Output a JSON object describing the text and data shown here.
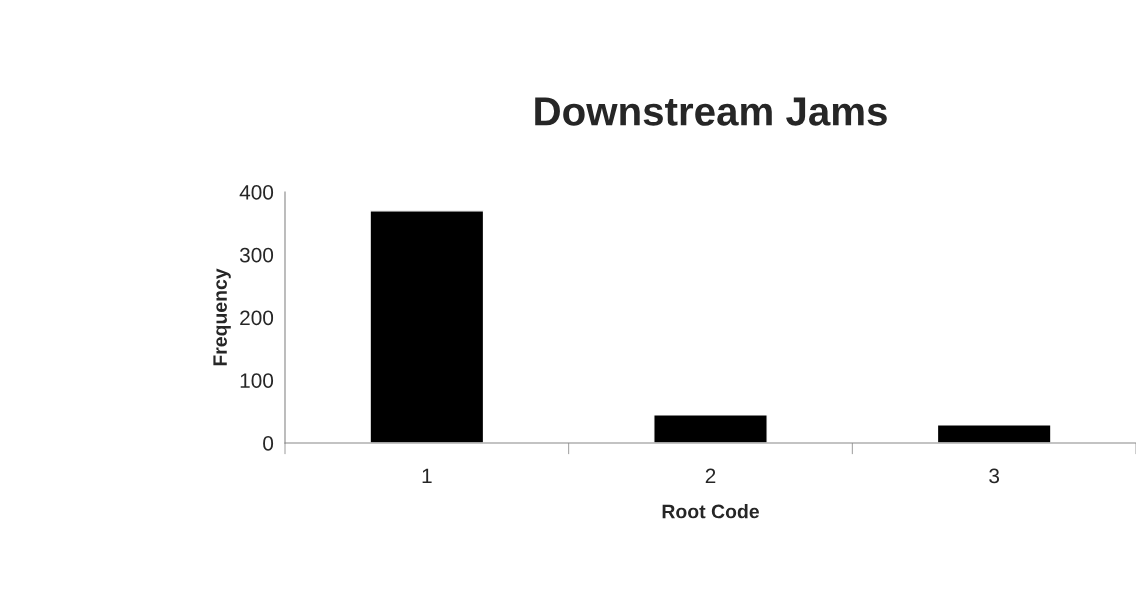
{
  "chart_data": {
    "type": "bar",
    "title": "Downstream Jams",
    "xlabel": "Root Code",
    "ylabel": "Frequency",
    "categories": [
      "1",
      "2",
      "3"
    ],
    "series": [
      {
        "color": "#000000",
        "values": [
          370,
          45,
          29
        ]
      }
    ],
    "ylim": [
      0,
      400
    ],
    "yticks": [
      0,
      100,
      200,
      300,
      400
    ],
    "grid": false,
    "legend": false
  }
}
